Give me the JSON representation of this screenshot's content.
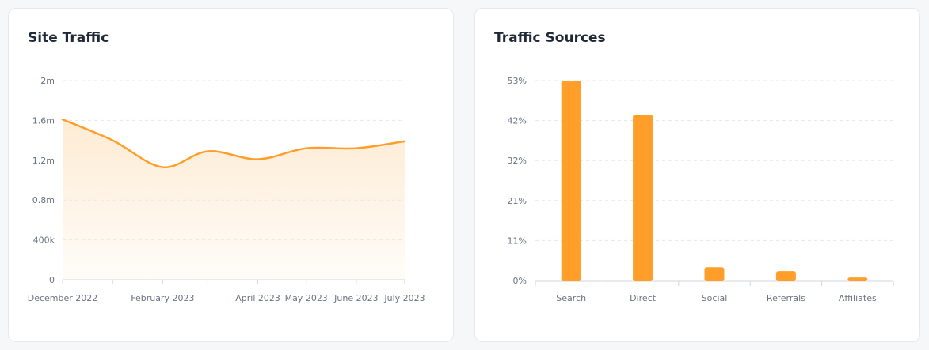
{
  "colors": {
    "accent": "#ff9f2a",
    "area_top": "#fde8cc",
    "grid": "#e5e7eb",
    "text": "#6b7280"
  },
  "cards": [
    {
      "title": "Site Traffic"
    },
    {
      "title": "Traffic Sources"
    }
  ],
  "chart_data": [
    {
      "type": "area",
      "title": "Site Traffic",
      "x": [
        "2022-12-01",
        "2023-01-01",
        "2023-02-01",
        "2023-03-01",
        "2023-04-01",
        "2023-05-01",
        "2023-06-01",
        "2023-07-01"
      ],
      "x_tick_labels": [
        "December 2022",
        "February 2023",
        "April 2023",
        "May 2023",
        "June 2023",
        "July 2023"
      ],
      "x_tick_dates": [
        "2022-12-01",
        "2023-02-01",
        "2023-04-01",
        "2023-05-01",
        "2023-06-01",
        "2023-07-01"
      ],
      "values": [
        1610000,
        1400000,
        1130000,
        1290000,
        1210000,
        1320000,
        1320000,
        1390000
      ],
      "ylim": [
        0,
        2000000
      ],
      "y_ticks": [
        0,
        400000,
        800000,
        1200000,
        1600000,
        2000000
      ],
      "y_tick_labels": [
        "0",
        "400k",
        "0.8m",
        "1.2m",
        "1.6m",
        "2m"
      ],
      "grid": true,
      "xlabel": "",
      "ylabel": ""
    },
    {
      "type": "bar",
      "title": "Traffic Sources",
      "categories": [
        "Search",
        "Direct",
        "Social",
        "Referrals",
        "Affiliates"
      ],
      "values": [
        53,
        44,
        3.5,
        2.5,
        0.8
      ],
      "ylim": [
        0,
        53
      ],
      "y_ticks": [
        0,
        10.6,
        21.2,
        31.8,
        42.4,
        53
      ],
      "y_tick_labels": [
        "0%",
        "11%",
        "21%",
        "32%",
        "42%",
        "53%"
      ],
      "grid": true,
      "xlabel": "",
      "ylabel": ""
    }
  ]
}
